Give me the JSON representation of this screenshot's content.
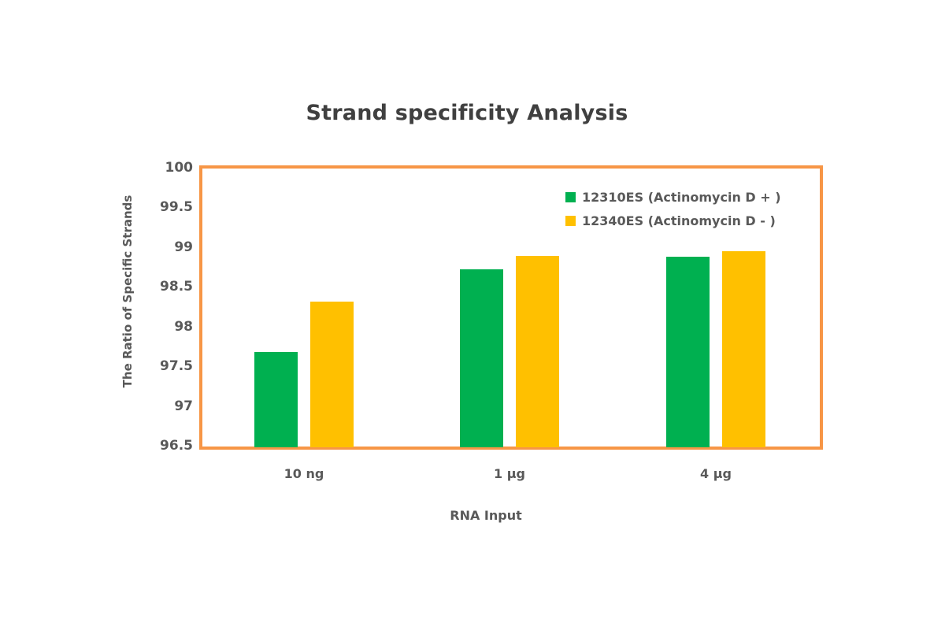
{
  "chart_data": {
    "type": "bar",
    "title": "Strand specificity Analysis",
    "xlabel": "RNA Input",
    "ylabel": "The Ratio of Specific Strands",
    "categories": [
      "10 ng",
      "1 µg",
      "4 µg"
    ],
    "series": [
      {
        "name": "12310ES (Actinomycin D + )",
        "color": "#00b050",
        "values": [
          97.68,
          98.72,
          98.88
        ]
      },
      {
        "name": "12340ES (Actinomycin D - )",
        "color": "#ffc000",
        "values": [
          98.31,
          98.89,
          98.95
        ]
      }
    ],
    "ylim": [
      96.5,
      100
    ],
    "yticks": [
      "100",
      "99.5",
      "99",
      "98.5",
      "98",
      "97.5",
      "97",
      "96.5"
    ],
    "grid": false,
    "legend_position": "top-right inside plot",
    "plot_border_color": "#f79646"
  }
}
